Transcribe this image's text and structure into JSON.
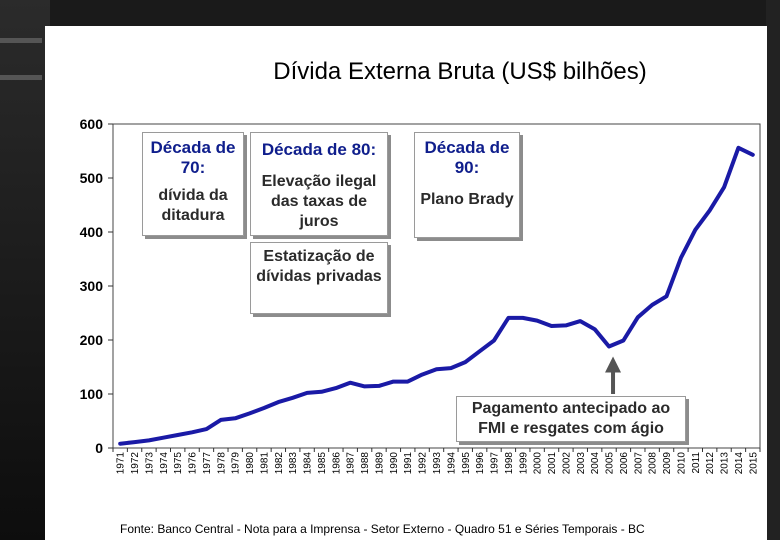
{
  "chart_data": {
    "type": "line",
    "title": "Dívida Externa Bruta (US$ bilhões)",
    "xlabel": "",
    "ylabel": "",
    "ylim": [
      0,
      600
    ],
    "yticks": [
      0,
      100,
      200,
      300,
      400,
      500,
      600
    ],
    "grid": false,
    "legend": "none",
    "x": [
      "1971",
      "1972",
      "1973",
      "1974",
      "1975",
      "1976",
      "1977",
      "1978",
      "1979",
      "1980",
      "1981",
      "1982",
      "1983",
      "1984",
      "1985",
      "1986",
      "1987",
      "1988",
      "1989",
      "1990",
      "1991",
      "1992",
      "1993",
      "1994",
      "1995",
      "1996",
      "1997",
      "1998",
      "1999",
      "2000",
      "2001",
      "2002",
      "2003",
      "2004",
      "2005",
      "2006",
      "2007",
      "2008",
      "2009",
      "2010",
      "2011",
      "2012",
      "2013",
      "2014",
      "2015"
    ],
    "series": [
      {
        "values": [
          8,
          11,
          14,
          19,
          24,
          29,
          35,
          52,
          55,
          64,
          74,
          85,
          93,
          102,
          104,
          111,
          121,
          114,
          115,
          123,
          123,
          136,
          146,
          148,
          159,
          179,
          199,
          241,
          241,
          236,
          226,
          227,
          235,
          220,
          188,
          199,
          242,
          265,
          281,
          352,
          404,
          440,
          483,
          556,
          543
        ],
        "color": "#1a1aa6"
      }
    ],
    "annotations": [
      {
        "heading": "Década de 70:",
        "body": "dívida da ditadura"
      },
      {
        "heading": "Década de 80:",
        "body": "Elevação ilegal das taxas de juros"
      },
      {
        "heading": "",
        "body": "Estatização de dívidas privadas"
      },
      {
        "heading": "Década de 90:",
        "body": "Plano Brady"
      },
      {
        "heading": "",
        "body": "Pagamento antecipado ao FMI e resgates com ágio"
      }
    ],
    "source": "Fonte: Banco Central - Nota para a Imprensa - Setor Externo - Quadro 51 e Séries Temporais - BC"
  }
}
